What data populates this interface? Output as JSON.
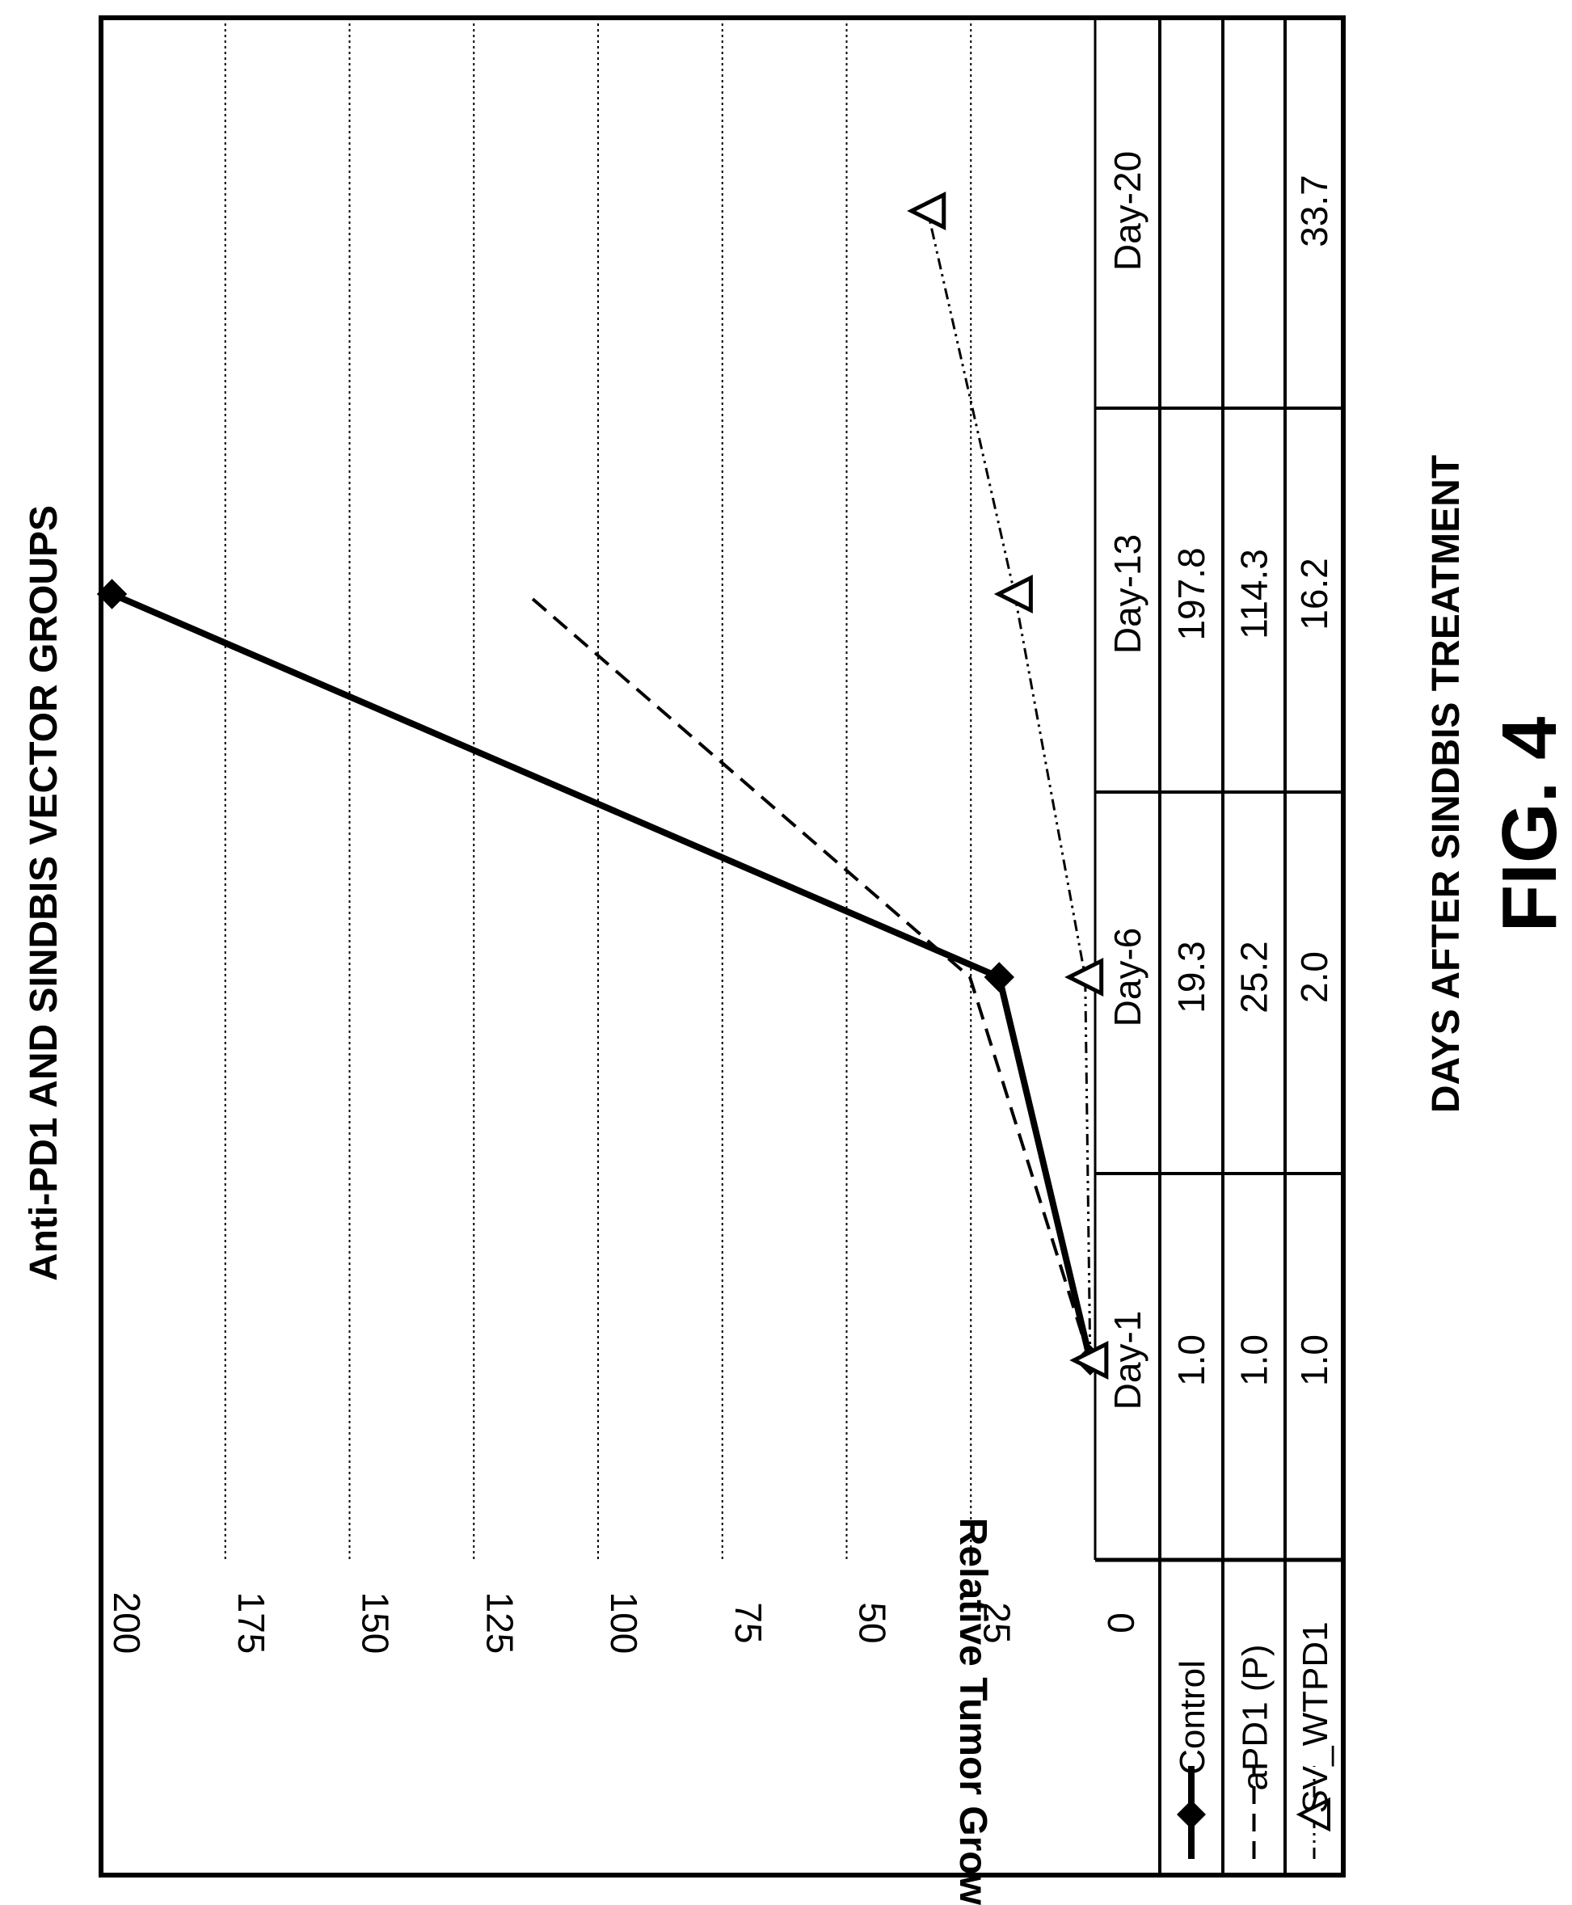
{
  "chart_data": {
    "type": "line",
    "title": "Anti-PD1 AND SINDBIS VECTOR GROUPS",
    "ylabel": "Relative Tumor Growth",
    "xlabel": "DAYS AFTER SINDBIS TREATMENT",
    "figure_label": "FIG. 4",
    "ylim": [
      0,
      200
    ],
    "yticks": [
      0,
      25,
      50,
      75,
      100,
      125,
      150,
      175,
      200
    ],
    "categories": [
      "Day-1",
      "Day-6",
      "Day-13",
      "Day-20"
    ],
    "grid": "horizontal-dotted",
    "legend": "data-table-left",
    "series": [
      {
        "name": "Control",
        "values": [
          1.0,
          19.3,
          197.8,
          null
        ],
        "labels": [
          "1.0",
          "19.3",
          "197.8",
          ""
        ],
        "marker": "diamond",
        "style": "solid"
      },
      {
        "name": "aPD1 (P)",
        "values": [
          1.0,
          25.2,
          114.3,
          null
        ],
        "labels": [
          "1.0",
          "25.2",
          "114.3",
          ""
        ],
        "marker": "none",
        "style": "dashed"
      },
      {
        "name": "SV_WTPD1",
        "values": [
          1.0,
          2.0,
          16.2,
          33.7
        ],
        "labels": [
          "1.0",
          "2.0",
          "16.2",
          "33.7"
        ],
        "marker": "triangle",
        "style": "dashdotdot"
      }
    ]
  }
}
